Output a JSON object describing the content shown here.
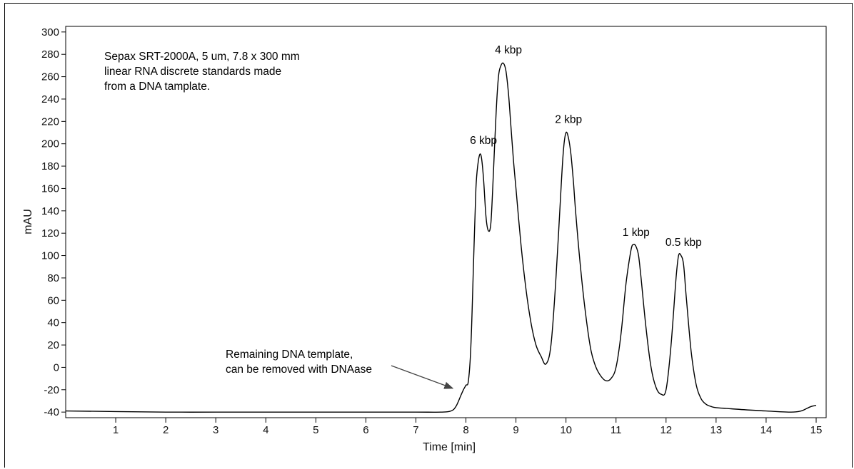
{
  "chart_data": {
    "type": "line",
    "title": "",
    "xlabel": "Time [min]",
    "ylabel": "mAU",
    "xlim": [
      0,
      15.2
    ],
    "ylim": [
      -45,
      305
    ],
    "x_ticks": [
      1,
      2,
      3,
      4,
      5,
      6,
      7,
      8,
      9,
      10,
      11,
      12,
      13,
      14,
      15
    ],
    "y_ticks": [
      -40,
      -20,
      0,
      20,
      40,
      60,
      80,
      100,
      120,
      140,
      160,
      180,
      200,
      220,
      240,
      260,
      280,
      300
    ],
    "grid": false,
    "series": [
      {
        "x": [
          0,
          1,
          2,
          3,
          4,
          5,
          6,
          7,
          7.5,
          7.7,
          7.8,
          7.9,
          7.95,
          8.0,
          8.05,
          8.1,
          8.15,
          8.2,
          8.25,
          8.3,
          8.35,
          8.4,
          8.45,
          8.5,
          8.55,
          8.6,
          8.65,
          8.7,
          8.75,
          8.8,
          8.85,
          8.9,
          8.95,
          9.0,
          9.1,
          9.2,
          9.3,
          9.4,
          9.5,
          9.6,
          9.7,
          9.8,
          9.9,
          9.95,
          10.0,
          10.05,
          10.1,
          10.15,
          10.2,
          10.3,
          10.4,
          10.5,
          10.6,
          10.7,
          10.8,
          10.9,
          11.0,
          11.1,
          11.2,
          11.3,
          11.35,
          11.4,
          11.45,
          11.5,
          11.6,
          11.7,
          11.8,
          11.9,
          12.0,
          12.1,
          12.2,
          12.25,
          12.3,
          12.35,
          12.4,
          12.5,
          12.6,
          12.7,
          12.8,
          12.9,
          13.0,
          13.3,
          13.6,
          14.0,
          14.5,
          14.7,
          14.8,
          14.9,
          15.0
        ],
        "y": [
          -39,
          -39.5,
          -40,
          -40,
          -40,
          -40,
          -40,
          -40,
          -40,
          -39,
          -35,
          -25,
          -20,
          -16,
          -12,
          20,
          90,
          160,
          185,
          190,
          170,
          135,
          122,
          130,
          175,
          225,
          260,
          270,
          272,
          265,
          245,
          215,
          185,
          160,
          110,
          70,
          40,
          20,
          10,
          3,
          20,
          80,
          160,
          195,
          210,
          205,
          190,
          165,
          135,
          85,
          45,
          15,
          0,
          -8,
          -12,
          -10,
          0,
          30,
          75,
          105,
          110,
          108,
          100,
          80,
          35,
          0,
          -18,
          -24,
          -20,
          20,
          80,
          100,
          100,
          92,
          65,
          15,
          -15,
          -28,
          -33,
          -35,
          -36,
          -37,
          -38,
          -39,
          -40,
          -39,
          -37,
          -35,
          -34
        ]
      }
    ],
    "annotations": [
      {
        "text": "6 kbp",
        "x": 8.35,
        "y": 192
      },
      {
        "text": "4 kbp",
        "x": 8.85,
        "y": 273
      },
      {
        "text": "2 kbp",
        "x": 10.05,
        "y": 211
      },
      {
        "text": "1 kbp",
        "x": 11.4,
        "y": 110
      },
      {
        "text": "0.5 kbp",
        "x": 12.35,
        "y": 101
      }
    ],
    "info_lines": [
      "Sepax SRT-2000A, 5 um, 7.8 x 300 mm",
      "linear RNA discrete standards made",
      "from a DNA tamplate."
    ],
    "arrow_note": {
      "lines": [
        "Remaining DNA template,",
        "can be removed with DNAase"
      ],
      "target_x": 7.85,
      "target_y": -20
    }
  }
}
